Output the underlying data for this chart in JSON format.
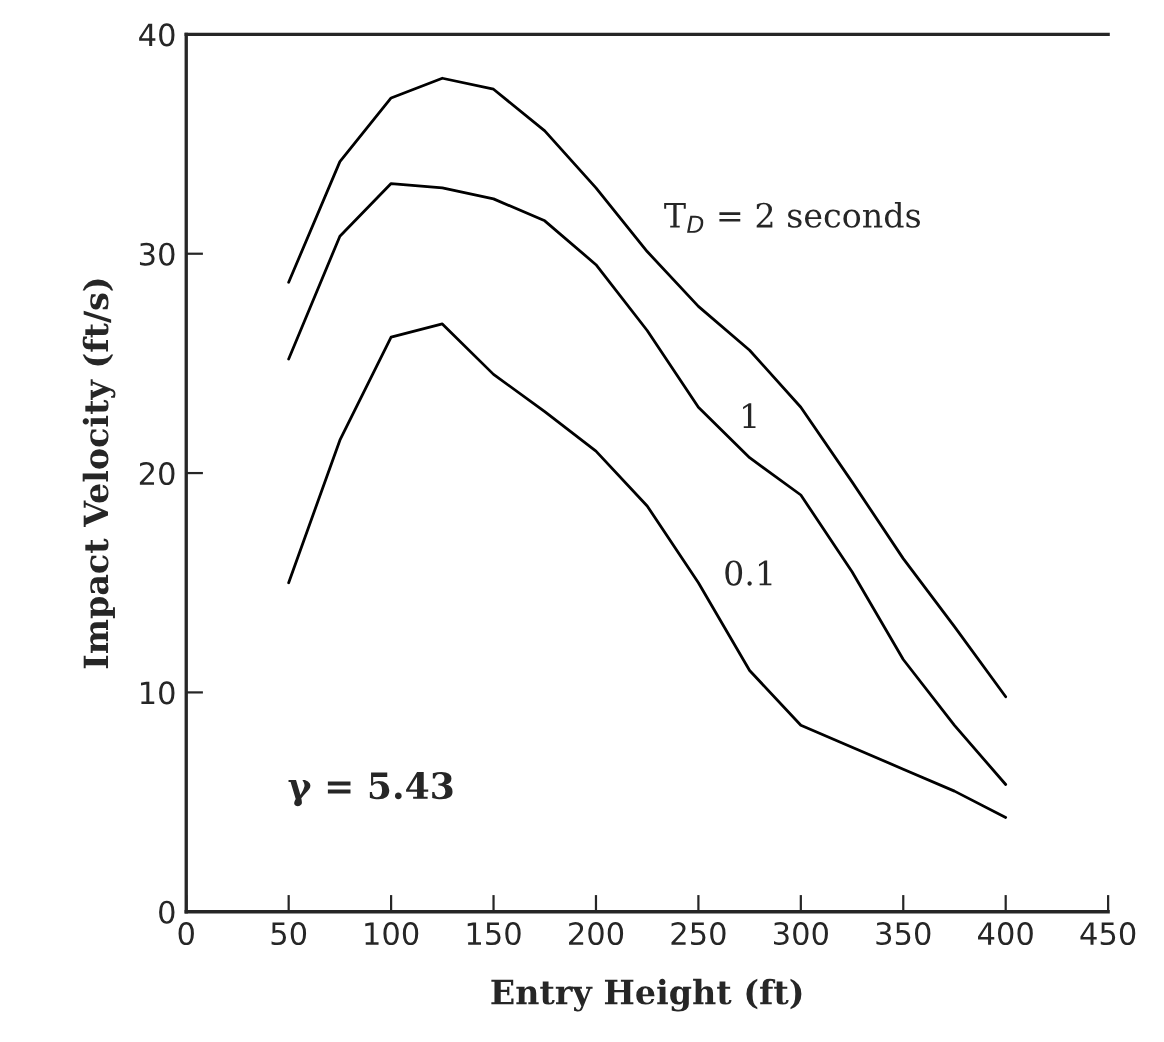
{
  "chart_data": {
    "type": "line",
    "xlabel": "Entry Height (ft)",
    "ylabel": "Impact Velocity (ft/s)",
    "xlim": [
      0,
      450
    ],
    "xticks": [
      0,
      50,
      100,
      150,
      200,
      250,
      300,
      350,
      400,
      450
    ],
    "ylim": [
      0,
      40
    ],
    "yticks": [
      0,
      10,
      20,
      30,
      40
    ],
    "grid": false,
    "legend": false,
    "marker": "none",
    "line_style": "solid",
    "x": [
      50,
      75,
      100,
      125,
      150,
      175,
      200,
      225,
      250,
      275,
      300,
      325,
      350,
      375,
      400
    ],
    "series": [
      {
        "name": "T$_{D}$ = 2 seconds",
        "color": "#000000",
        "values": [
          28.7,
          34.2,
          37.1,
          38.0,
          37.5,
          35.6,
          33.0,
          30.1,
          27.6,
          25.6,
          23.0,
          19.6,
          16.1,
          13.0,
          9.8
        ]
      },
      {
        "name": "1",
        "color": "#000000",
        "values": [
          25.2,
          30.8,
          33.2,
          33.0,
          32.5,
          31.5,
          29.5,
          26.5,
          23.0,
          20.7,
          19.0,
          15.5,
          11.5,
          8.5,
          5.8
        ]
      },
      {
        "name": "0.1",
        "color": "#000000",
        "values": [
          15.0,
          21.5,
          26.2,
          26.8,
          24.5,
          22.8,
          21.0,
          18.5,
          15.0,
          11.0,
          8.5,
          7.5,
          6.5,
          5.5,
          4.3
        ]
      }
    ],
    "annotations": [
      "γ = 5.43"
    ]
  }
}
